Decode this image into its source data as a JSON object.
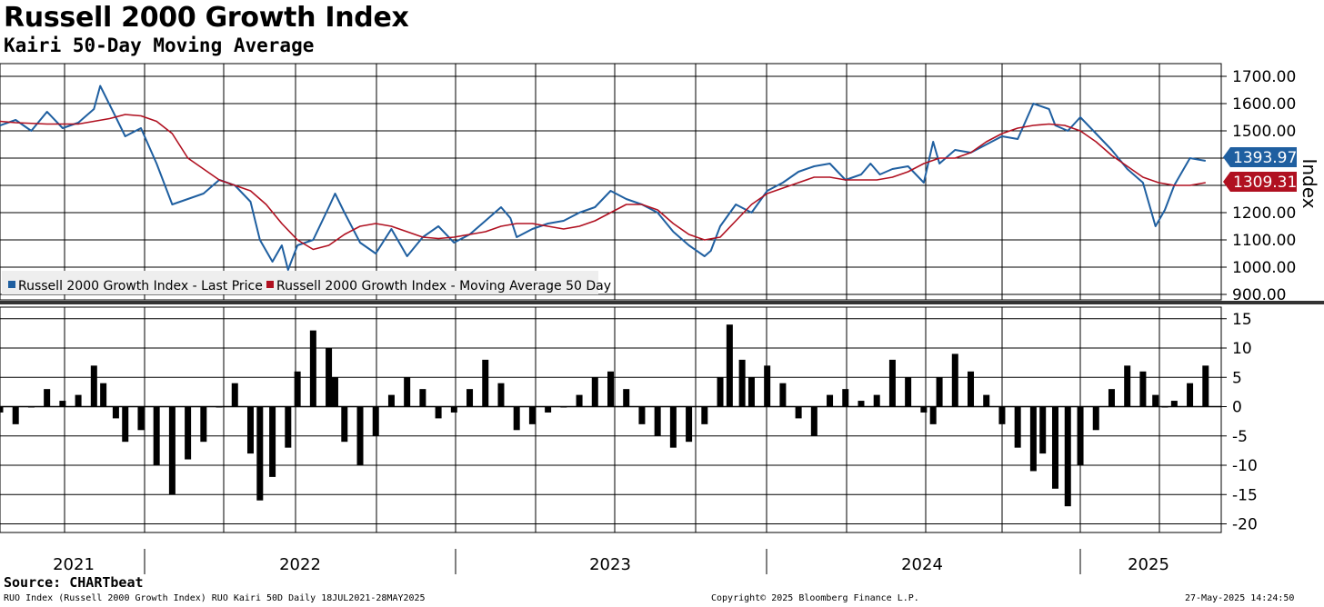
{
  "chart_data": {
    "type": "line",
    "title": "Russell 2000 Growth Index",
    "subtitle": "Kairi 50-Day Moving Average",
    "source": "Source: CHARTbeat",
    "x_labels": [
      "2021",
      "2022",
      "2023",
      "2024",
      "2025"
    ],
    "upper_panel": {
      "ylabel": "Index",
      "ylim": [
        900,
        1700
      ],
      "y_ticks": [
        "1700.00",
        "1600.00",
        "1500.00",
        "1400.00",
        "1300.00",
        "1200.00",
        "1100.00",
        "1000.00",
        "900.00"
      ],
      "legend": [
        "Russell 2000 Growth Index - Last Price",
        "Russell 2000 Growth Index - Moving Average 50 Day"
      ],
      "last_value_labels": [
        "1393.97",
        "1309.31"
      ],
      "series": [
        {
          "name": "Russell 2000 Growth Index - Last Price",
          "color": "#1f5fa0",
          "x": [
            2021.55,
            2021.6,
            2021.65,
            2021.7,
            2021.75,
            2021.8,
            2021.85,
            2021.87,
            2021.92,
            2021.95,
            2022.0,
            2022.05,
            2022.1,
            2022.15,
            2022.2,
            2022.25,
            2022.3,
            2022.35,
            2022.38,
            2022.42,
            2022.45,
            2022.47,
            2022.5,
            2022.55,
            2022.6,
            2022.62,
            2022.65,
            2022.7,
            2022.75,
            2022.8,
            2022.85,
            2022.9,
            2022.95,
            2023.0,
            2023.05,
            2023.1,
            2023.15,
            2023.18,
            2023.2,
            2023.25,
            2023.3,
            2023.35,
            2023.4,
            2023.45,
            2023.5,
            2023.55,
            2023.6,
            2023.65,
            2023.7,
            2023.75,
            2023.8,
            2023.82,
            2023.85,
            2023.9,
            2023.95,
            2024.0,
            2024.05,
            2024.1,
            2024.15,
            2024.2,
            2024.25,
            2024.3,
            2024.33,
            2024.36,
            2024.4,
            2024.45,
            2024.5,
            2024.53,
            2024.55,
            2024.6,
            2024.65,
            2024.7,
            2024.75,
            2024.8,
            2024.85,
            2024.9,
            2024.92,
            2024.96,
            2025.0,
            2025.05,
            2025.1,
            2025.15,
            2025.2,
            2025.24,
            2025.27,
            2025.3,
            2025.35,
            2025.4
          ],
          "y": [
            1520,
            1540,
            1500,
            1570,
            1510,
            1530,
            1580,
            1665,
            1550,
            1480,
            1510,
            1380,
            1230,
            1250,
            1270,
            1320,
            1300,
            1240,
            1100,
            1020,
            1080,
            990,
            1080,
            1100,
            1220,
            1270,
            1200,
            1090,
            1050,
            1140,
            1040,
            1110,
            1150,
            1090,
            1120,
            1170,
            1220,
            1180,
            1110,
            1140,
            1160,
            1170,
            1200,
            1220,
            1280,
            1250,
            1230,
            1200,
            1130,
            1080,
            1040,
            1060,
            1150,
            1230,
            1200,
            1280,
            1310,
            1350,
            1370,
            1380,
            1320,
            1340,
            1380,
            1340,
            1360,
            1370,
            1310,
            1460,
            1380,
            1430,
            1420,
            1450,
            1480,
            1470,
            1600,
            1580,
            1520,
            1500,
            1550,
            1490,
            1430,
            1360,
            1310,
            1150,
            1210,
            1300,
            1400,
            1390
          ]
        },
        {
          "name": "Russell 2000 Growth Index - Moving Average 50 Day",
          "color": "#b01020",
          "x": [
            2021.55,
            2021.6,
            2021.7,
            2021.8,
            2021.9,
            2021.95,
            2022.0,
            2022.05,
            2022.1,
            2022.15,
            2022.25,
            2022.3,
            2022.35,
            2022.4,
            2022.45,
            2022.5,
            2022.55,
            2022.6,
            2022.65,
            2022.7,
            2022.75,
            2022.8,
            2022.85,
            2022.9,
            2022.95,
            2023.0,
            2023.05,
            2023.1,
            2023.15,
            2023.2,
            2023.25,
            2023.3,
            2023.35,
            2023.4,
            2023.45,
            2023.5,
            2023.55,
            2023.6,
            2023.65,
            2023.7,
            2023.75,
            2023.8,
            2023.85,
            2023.9,
            2023.95,
            2024.0,
            2024.05,
            2024.1,
            2024.15,
            2024.2,
            2024.25,
            2024.3,
            2024.35,
            2024.4,
            2024.45,
            2024.5,
            2024.55,
            2024.6,
            2024.65,
            2024.7,
            2024.75,
            2024.8,
            2024.85,
            2024.9,
            2024.95,
            2025.0,
            2025.05,
            2025.1,
            2025.15,
            2025.2,
            2025.25,
            2025.3,
            2025.35,
            2025.4
          ],
          "y": [
            1535,
            1530,
            1525,
            1525,
            1545,
            1560,
            1555,
            1535,
            1490,
            1400,
            1320,
            1300,
            1280,
            1230,
            1160,
            1100,
            1065,
            1080,
            1120,
            1150,
            1160,
            1150,
            1130,
            1110,
            1105,
            1110,
            1120,
            1130,
            1150,
            1160,
            1160,
            1150,
            1140,
            1150,
            1170,
            1200,
            1230,
            1230,
            1210,
            1160,
            1120,
            1100,
            1110,
            1170,
            1230,
            1270,
            1290,
            1310,
            1330,
            1330,
            1320,
            1320,
            1320,
            1330,
            1350,
            1380,
            1400,
            1400,
            1420,
            1460,
            1490,
            1510,
            1520,
            1525,
            1520,
            1500,
            1460,
            1410,
            1370,
            1330,
            1310,
            1300,
            1300,
            1310
          ]
        }
      ]
    },
    "lower_panel": {
      "name": "RUO Kairi 50D",
      "ylim": [
        -22,
        17
      ],
      "y_ticks": [
        "15",
        "10",
        "5",
        "0",
        "-5",
        "-10",
        "-15",
        "-20"
      ],
      "x": [
        2021.55,
        2021.6,
        2021.65,
        2021.7,
        2021.75,
        2021.8,
        2021.85,
        2021.88,
        2021.92,
        2021.95,
        2022.0,
        2022.05,
        2022.1,
        2022.15,
        2022.2,
        2022.25,
        2022.3,
        2022.35,
        2022.38,
        2022.42,
        2022.47,
        2022.5,
        2022.55,
        2022.6,
        2022.62,
        2022.65,
        2022.7,
        2022.75,
        2022.8,
        2022.85,
        2022.9,
        2022.95,
        2023.0,
        2023.05,
        2023.1,
        2023.15,
        2023.2,
        2023.25,
        2023.3,
        2023.35,
        2023.4,
        2023.45,
        2023.5,
        2023.55,
        2023.6,
        2023.65,
        2023.7,
        2023.75,
        2023.8,
        2023.85,
        2023.88,
        2023.92,
        2023.95,
        2024.0,
        2024.05,
        2024.1,
        2024.15,
        2024.2,
        2024.25,
        2024.3,
        2024.35,
        2024.4,
        2024.45,
        2024.5,
        2024.53,
        2024.55,
        2024.6,
        2024.65,
        2024.7,
        2024.75,
        2024.8,
        2024.85,
        2024.88,
        2024.92,
        2024.96,
        2025.0,
        2025.05,
        2025.1,
        2025.15,
        2025.2,
        2025.24,
        2025.27,
        2025.3,
        2025.35,
        2025.4
      ],
      "values": [
        -1,
        -3,
        0,
        3,
        1,
        2,
        7,
        4,
        -2,
        -6,
        -4,
        -10,
        -15,
        -9,
        -6,
        0,
        4,
        -8,
        -16,
        -12,
        -7,
        6,
        13,
        10,
        5,
        -6,
        -10,
        -5,
        2,
        5,
        3,
        -2,
        -1,
        3,
        8,
        4,
        -4,
        -3,
        -1,
        0,
        2,
        5,
        6,
        3,
        -3,
        -5,
        -7,
        -6,
        -3,
        5,
        14,
        8,
        5,
        7,
        4,
        -2,
        -5,
        2,
        3,
        1,
        2,
        8,
        5,
        -1,
        -3,
        5,
        9,
        6,
        2,
        -3,
        -7,
        -11,
        -8,
        -14,
        -17,
        -10,
        -4,
        3,
        7,
        6,
        2,
        0,
        1,
        4,
        7
      ]
    },
    "footer": {
      "left": "RUO Index (Russell 2000 Growth Index) RUO Kairi 50D  Daily 18JUL2021-28MAY2025",
      "middle": "Copyright© 2025 Bloomberg Finance L.P.",
      "right": "27-May-2025 14:24:50"
    }
  }
}
